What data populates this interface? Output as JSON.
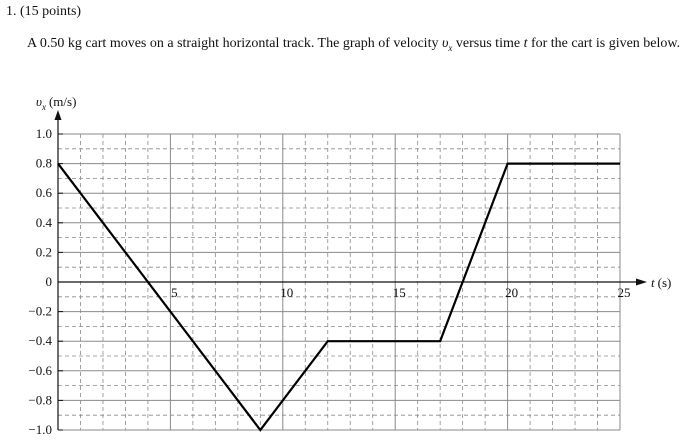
{
  "question": {
    "number": "1.",
    "points": "(15 points)",
    "text_before_vx": "A 0.50 kg cart moves on a straight horizontal track. The graph of velocity ",
    "vx_symbol": "υ",
    "vx_sub": "x",
    "text_mid": " versus time ",
    "t_symbol": "t",
    "text_after": " for the cart is given below."
  },
  "chart_data": {
    "type": "line",
    "ylabel_symbol": "υ",
    "ylabel_sub": "x",
    "ylabel_unit": "(m/s)",
    "xlabel_symbol": "t",
    "xlabel_unit": "(s)",
    "xlim": [
      0,
      25
    ],
    "ylim": [
      -1.0,
      1.0
    ],
    "x_ticks": [
      5,
      10,
      15,
      20,
      25
    ],
    "x_tick_labels": [
      "5",
      "10",
      "15",
      "20",
      "25"
    ],
    "y_ticks": [
      1.0,
      0.8,
      0.6,
      0.4,
      0.2,
      0,
      -0.2,
      -0.4,
      -0.6,
      -0.8,
      -1.0
    ],
    "y_tick_labels": [
      "1.0",
      "0.8",
      "0.6",
      "0.4",
      "0.2",
      "0",
      "−0.2",
      "−0.4",
      "−0.6",
      "−0.8",
      "−1.0"
    ],
    "grid": true,
    "series": [
      {
        "x": [
          0,
          9,
          12,
          17,
          20,
          25
        ],
        "y": [
          0.8,
          -1.0,
          -0.4,
          -0.4,
          0.8,
          0.8
        ]
      }
    ]
  }
}
